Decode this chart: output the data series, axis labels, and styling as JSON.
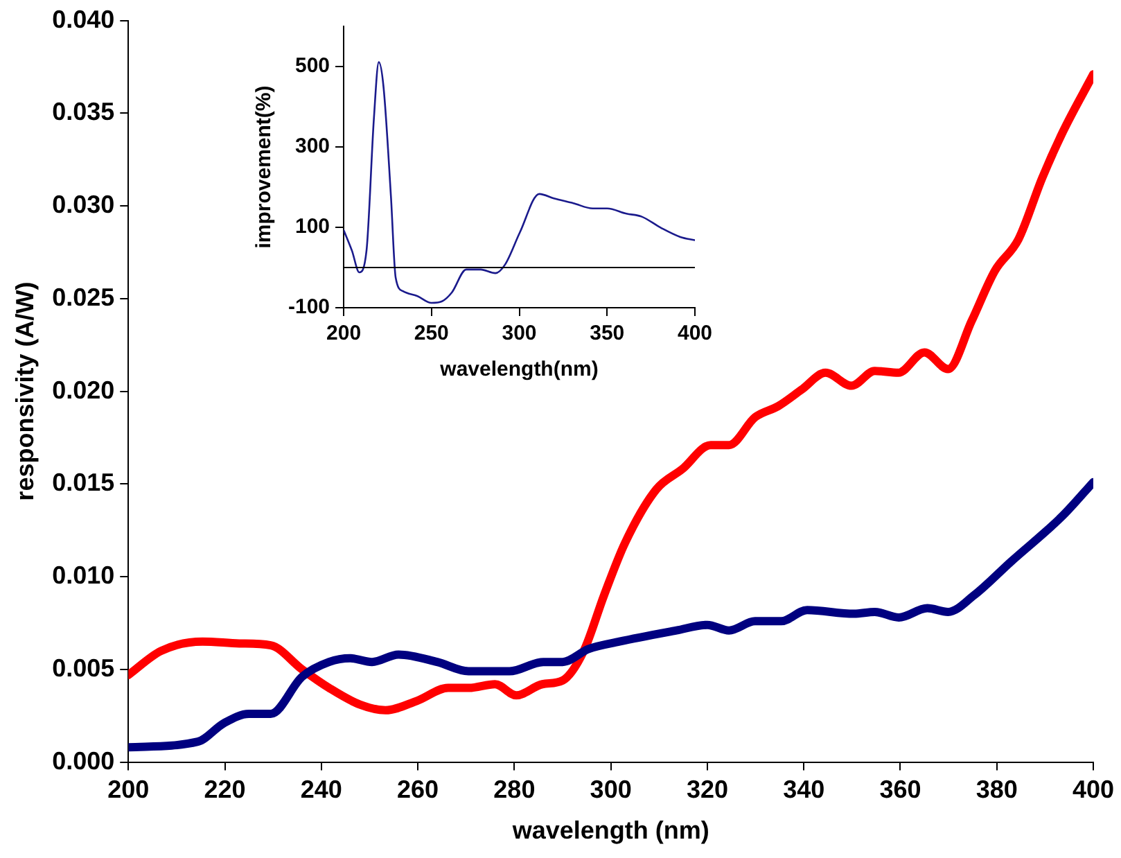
{
  "chart_data": [
    {
      "type": "line",
      "xlabel": "wavelength (nm)",
      "ylabel": "responsivity (A/W)",
      "marker": "none",
      "line_style": "solid",
      "grid": false,
      "legend": false,
      "xlim": [
        200,
        400
      ],
      "xticks": [
        200,
        220,
        240,
        260,
        280,
        300,
        320,
        340,
        360,
        380,
        400
      ],
      "ylim": [
        0,
        0.04
      ],
      "yticks": [
        {
          "value": 0,
          "label": "0.000"
        },
        {
          "value": 0.005,
          "label": "0.005"
        },
        {
          "value": 0.01,
          "label": "0.010"
        },
        {
          "value": 0.015,
          "label": "0.015"
        },
        {
          "value": 0.02,
          "label": "0.020"
        },
        {
          "value": 0.025,
          "label": "0.025"
        },
        {
          "value": 0.03,
          "label": "0.030"
        },
        {
          "value": 0.035,
          "label": "0.035"
        },
        {
          "value": 0.04,
          "label": "0.040"
        }
      ],
      "series": [
        {
          "color": "#000080",
          "x": [
            200,
            214.4,
            219.8,
            225,
            229.5,
            236,
            241.6,
            246,
            250.5,
            256,
            264,
            270.5,
            279,
            286,
            290,
            295.4,
            301.8,
            313.6,
            320,
            324.5,
            329.9,
            335.3,
            340.7,
            350.4,
            354.7,
            359.7,
            365.6,
            369.9,
            375.3,
            382.9,
            393.7,
            400
          ],
          "values": [
            0.0008,
            0.0011,
            0.0021,
            0.0026,
            0.0026,
            0.0046,
            0.0054,
            0.0056,
            0.0054,
            0.0058,
            0.0054,
            0.0049,
            0.0049,
            0.0054,
            0.0054,
            0.0061,
            0.0065,
            0.0071,
            0.0074,
            0.0071,
            0.0076,
            0.0076,
            0.0082,
            0.008,
            0.0081,
            0.0078,
            0.0083,
            0.0081,
            0.009,
            0.0108,
            0.0133,
            0.0151
          ]
        },
        {
          "color": "#ff0000",
          "x": [
            200,
            206.8,
            215.4,
            223,
            229.5,
            236,
            241.6,
            248,
            253.3,
            259.8,
            266.3,
            270.6,
            276,
            280.4,
            285.8,
            290,
            294.4,
            298.6,
            302.9,
            309.4,
            314.8,
            320.7,
            324.5,
            329.9,
            334.7,
            339.6,
            344.5,
            349.9,
            354.7,
            359.6,
            365,
            369.9,
            374.8,
            379.6,
            384.5,
            389.4,
            393.7,
            400
          ],
          "values": [
            0.0047,
            0.006,
            0.0065,
            0.0064,
            0.0063,
            0.005,
            0.004,
            0.0031,
            0.0028,
            0.0033,
            0.004,
            0.004,
            0.0042,
            0.0036,
            0.0042,
            0.0044,
            0.006,
            0.009,
            0.0118,
            0.0147,
            0.0158,
            0.0171,
            0.0171,
            0.0186,
            0.0192,
            0.0201,
            0.021,
            0.0203,
            0.0211,
            0.021,
            0.0221,
            0.0212,
            0.0238,
            0.0265,
            0.0282,
            0.0315,
            0.034,
            0.0371
          ]
        }
      ]
    },
    {
      "type": "line",
      "xlabel": "wavelength(nm)",
      "ylabel": "improvement(%)",
      "marker": "none",
      "line_style": "solid",
      "grid": false,
      "legend": false,
      "xlim": [
        200,
        400
      ],
      "xticks": [
        200,
        250,
        300,
        350,
        400
      ],
      "ylim": [
        -100,
        600
      ],
      "yticks": [
        -100,
        100,
        300,
        500
      ],
      "ref_lines": [
        {
          "axis": "y",
          "value": 0,
          "color": "#000000"
        }
      ],
      "series": [
        {
          "color": "#1a1a8c",
          "x": [
            200,
            204.7,
            208.9,
            213,
            217.2,
            220,
            222.7,
            226.9,
            229.6,
            233.8,
            242,
            250,
            256,
            261.6,
            269.8,
            278,
            286.4,
            292,
            300.3,
            311.4,
            319.7,
            330.8,
            341.9,
            350,
            361,
            369.5,
            380.6,
            391.7,
            400
          ],
          "values": [
            93,
            42,
            -12,
            42,
            370,
            511,
            449,
            178,
            -25,
            -59,
            -71,
            -88,
            -84,
            -62,
            -5,
            -5,
            -14,
            8,
            87,
            183,
            172,
            160,
            147,
            147,
            134,
            127,
            99,
            76,
            68
          ]
        }
      ]
    }
  ]
}
